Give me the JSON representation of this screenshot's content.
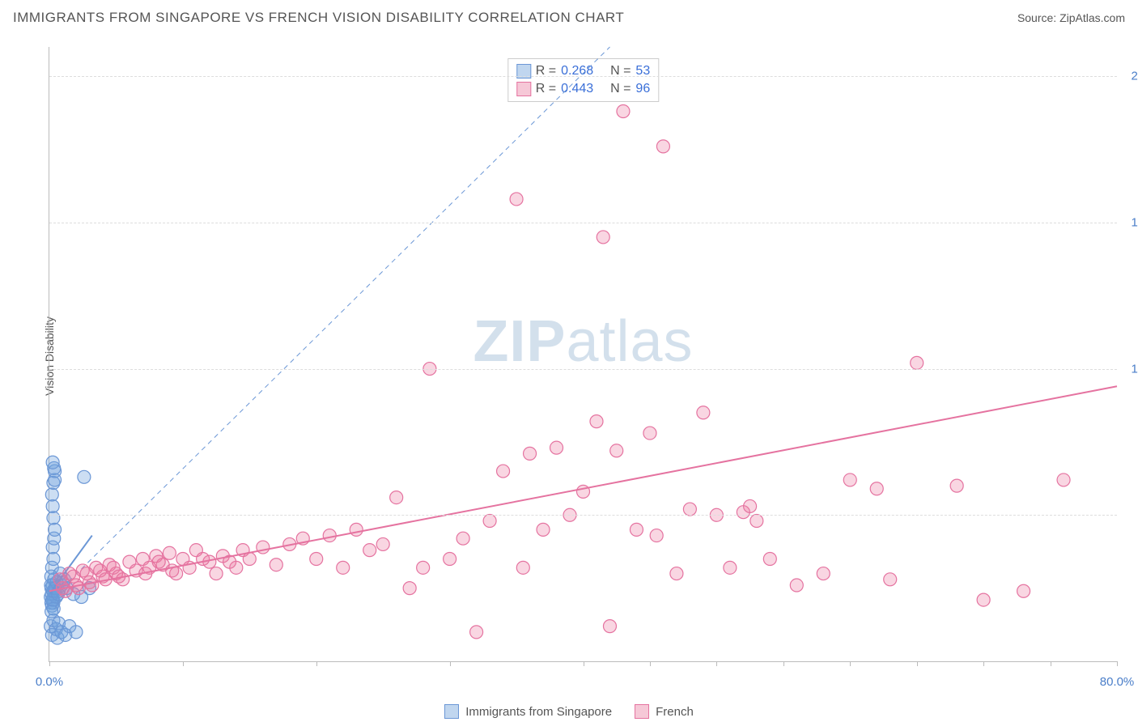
{
  "header": {
    "title": "IMMIGRANTS FROM SINGAPORE VS FRENCH VISION DISABILITY CORRELATION CHART",
    "source_prefix": "Source: ",
    "source_name": "ZipAtlas.com"
  },
  "chart": {
    "type": "scatter",
    "ylabel": "Vision Disability",
    "watermark_a": "ZIP",
    "watermark_b": "atlas",
    "background": "#ffffff",
    "grid_color": "#dddddd",
    "axis_color": "#bbbbbb",
    "tick_label_color": "#4a7ec9",
    "xlim": [
      0,
      80
    ],
    "ylim": [
      0,
      21
    ],
    "y_gridlines": [
      5,
      10,
      15,
      20
    ],
    "x_ticks": [
      0,
      10,
      20,
      30,
      40,
      45,
      50,
      55,
      60,
      65,
      70,
      75,
      80
    ],
    "x_tick_labels": {
      "0": "0.0%",
      "80": "80.0%"
    },
    "marker_radius": 8,
    "marker_stroke_width": 1.2,
    "trend_width": 2,
    "diagonal_dash": "6,5",
    "diag_color": "#6b97d6",
    "series": [
      {
        "key": "singapore",
        "label": "Immigrants from Singapore",
        "R": "0.268",
        "N": "53",
        "fill": "rgba(110,160,220,0.35)",
        "stroke": "#6b97d6",
        "swatch_fill": "#c0d6ef",
        "swatch_border": "#6b97d6",
        "trend": {
          "x1": 0,
          "y1": 2.3,
          "x2": 3.2,
          "y2": 4.3
        },
        "points": [
          [
            0.1,
            2.2
          ],
          [
            0.15,
            2.5
          ],
          [
            0.2,
            1.9
          ],
          [
            0.25,
            2.6
          ],
          [
            0.3,
            2.1
          ],
          [
            0.35,
            2.8
          ],
          [
            0.4,
            2.4
          ],
          [
            0.1,
            1.2
          ],
          [
            0.2,
            0.9
          ],
          [
            0.3,
            1.4
          ],
          [
            0.5,
            1.1
          ],
          [
            0.6,
            0.8
          ],
          [
            0.7,
            1.3
          ],
          [
            0.9,
            1.0
          ],
          [
            1.2,
            0.9
          ],
          [
            1.5,
            1.2
          ],
          [
            2.0,
            1.0
          ],
          [
            2.4,
            2.2
          ],
          [
            3.0,
            2.5
          ],
          [
            1.8,
            2.3
          ],
          [
            1.0,
            2.7
          ],
          [
            0.2,
            3.2
          ],
          [
            0.3,
            3.5
          ],
          [
            0.25,
            3.9
          ],
          [
            0.35,
            4.2
          ],
          [
            0.4,
            4.5
          ],
          [
            0.3,
            4.9
          ],
          [
            0.25,
            5.3
          ],
          [
            0.2,
            5.7
          ],
          [
            0.3,
            6.1
          ],
          [
            0.4,
            6.2
          ],
          [
            2.6,
            6.3
          ],
          [
            0.4,
            6.5
          ],
          [
            0.35,
            6.6
          ],
          [
            0.25,
            6.8
          ],
          [
            0.3,
            2.0
          ],
          [
            0.5,
            2.2
          ],
          [
            0.7,
            2.4
          ],
          [
            0.9,
            2.6
          ],
          [
            1.1,
            2.8
          ],
          [
            1.3,
            2.5
          ],
          [
            0.8,
            3.0
          ],
          [
            0.15,
            2.0
          ],
          [
            0.18,
            2.3
          ],
          [
            0.22,
            2.1
          ],
          [
            0.28,
            2.4
          ],
          [
            0.32,
            1.8
          ],
          [
            0.12,
            2.6
          ],
          [
            0.16,
            1.7
          ],
          [
            0.45,
            2.5
          ],
          [
            0.55,
            2.7
          ],
          [
            0.65,
            2.3
          ],
          [
            0.14,
            2.9
          ]
        ]
      },
      {
        "key": "french",
        "label": "French",
        "R": "0.443",
        "N": "96",
        "fill": "rgba(235,120,160,0.3)",
        "stroke": "#e573a0",
        "swatch_fill": "#f6c8d7",
        "swatch_border": "#e573a0",
        "trend": {
          "x1": 0,
          "y1": 2.4,
          "x2": 80,
          "y2": 9.4
        },
        "points": [
          [
            1,
            2.5
          ],
          [
            1.5,
            3.0
          ],
          [
            2,
            2.6
          ],
          [
            2.5,
            3.1
          ],
          [
            3,
            2.7
          ],
          [
            3.5,
            3.2
          ],
          [
            4,
            2.9
          ],
          [
            4.5,
            3.3
          ],
          [
            5,
            3.0
          ],
          [
            5.5,
            2.8
          ],
          [
            6,
            3.4
          ],
          [
            6.5,
            3.1
          ],
          [
            7,
            3.5
          ],
          [
            7.5,
            3.2
          ],
          [
            8,
            3.6
          ],
          [
            8.5,
            3.3
          ],
          [
            9,
            3.7
          ],
          [
            9.5,
            3.0
          ],
          [
            10,
            3.5
          ],
          [
            10.5,
            3.2
          ],
          [
            11,
            3.8
          ],
          [
            12,
            3.4
          ],
          [
            12.5,
            3.0
          ],
          [
            13,
            3.6
          ],
          [
            14,
            3.2
          ],
          [
            14.5,
            3.8
          ],
          [
            15,
            3.5
          ],
          [
            16,
            3.9
          ],
          [
            17,
            3.3
          ],
          [
            18,
            4.0
          ],
          [
            19,
            4.2
          ],
          [
            20,
            3.5
          ],
          [
            21,
            4.3
          ],
          [
            22,
            3.2
          ],
          [
            23,
            4.5
          ],
          [
            24,
            3.8
          ],
          [
            25,
            4.0
          ],
          [
            26,
            5.6
          ],
          [
            27,
            2.5
          ],
          [
            28,
            3.2
          ],
          [
            28.5,
            10.0
          ],
          [
            30,
            3.5
          ],
          [
            31,
            4.2
          ],
          [
            32,
            1.0
          ],
          [
            33,
            4.8
          ],
          [
            34,
            6.5
          ],
          [
            35,
            15.8
          ],
          [
            35.5,
            3.2
          ],
          [
            36,
            7.1
          ],
          [
            37,
            4.5
          ],
          [
            38,
            7.3
          ],
          [
            39,
            5.0
          ],
          [
            40,
            5.8
          ],
          [
            41,
            8.2
          ],
          [
            41.5,
            14.5
          ],
          [
            42,
            1.2
          ],
          [
            42.5,
            7.2
          ],
          [
            43,
            18.8
          ],
          [
            44,
            4.5
          ],
          [
            45,
            7.8
          ],
          [
            45.5,
            4.3
          ],
          [
            46,
            17.6
          ],
          [
            47,
            3.0
          ],
          [
            48,
            5.2
          ],
          [
            49,
            8.5
          ],
          [
            50,
            5.0
          ],
          [
            51,
            3.2
          ],
          [
            52,
            5.1
          ],
          [
            52.5,
            5.3
          ],
          [
            53,
            4.8
          ],
          [
            54,
            3.5
          ],
          [
            56,
            2.6
          ],
          [
            58,
            3.0
          ],
          [
            60,
            6.2
          ],
          [
            62,
            5.9
          ],
          [
            63,
            2.8
          ],
          [
            65,
            10.2
          ],
          [
            68,
            6.0
          ],
          [
            70,
            2.1
          ],
          [
            73,
            2.4
          ],
          [
            76,
            6.2
          ],
          [
            0.8,
            2.8
          ],
          [
            1.2,
            2.4
          ],
          [
            1.8,
            2.9
          ],
          [
            2.2,
            2.5
          ],
          [
            2.8,
            3.0
          ],
          [
            3.2,
            2.6
          ],
          [
            3.8,
            3.1
          ],
          [
            4.2,
            2.8
          ],
          [
            4.8,
            3.2
          ],
          [
            5.2,
            2.9
          ],
          [
            7.2,
            3.0
          ],
          [
            8.2,
            3.4
          ],
          [
            9.2,
            3.1
          ],
          [
            11.5,
            3.5
          ],
          [
            13.5,
            3.4
          ]
        ]
      }
    ]
  },
  "legend_stats": {
    "r_label": "R =",
    "n_label": "N ="
  },
  "footer_legend": {}
}
